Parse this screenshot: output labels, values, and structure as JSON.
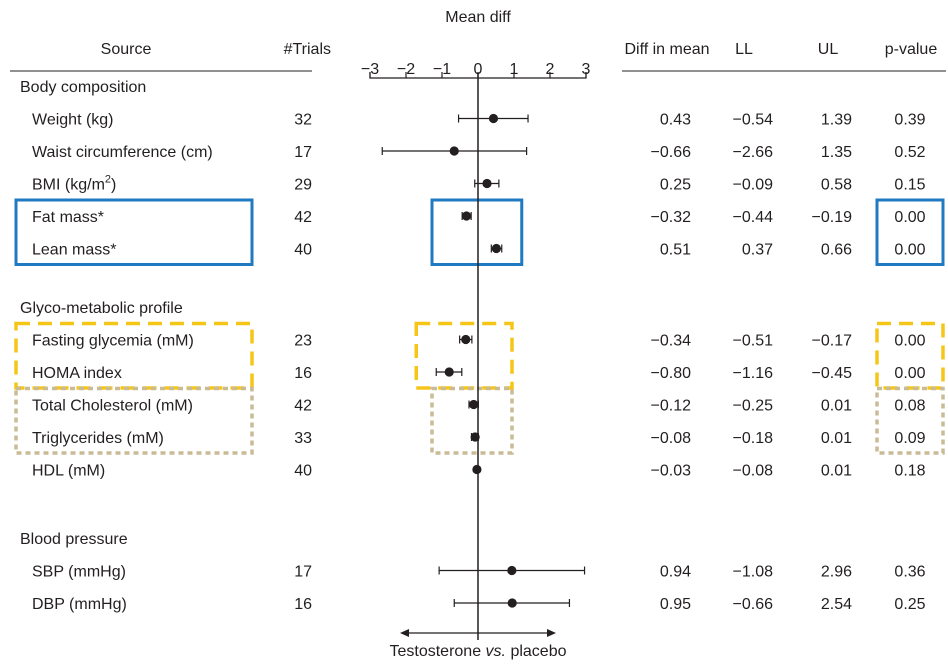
{
  "chart_data": {
    "type": "forest",
    "title": "Mean diff",
    "xlabel": "Testosterone vs. placebo",
    "xlabel_parts": [
      "Testosterone ",
      "vs.",
      " placebo"
    ],
    "xlim": [
      -3,
      3
    ],
    "x_ticks": [
      "−3",
      "−2",
      "−1",
      "0",
      "1",
      "2",
      "3"
    ],
    "reference_line": 0,
    "columns": {
      "source": "Source",
      "trials": "#Trials",
      "diff": "Diff in mean",
      "ll": "LL",
      "ul": "UL",
      "p": "p-value"
    },
    "groups": [
      {
        "name": "Body composition",
        "rows": [
          {
            "label": "Weight (kg)",
            "trials": "32",
            "diff": 0.43,
            "ll": -0.54,
            "ul": 1.39,
            "diff_text": "0.43",
            "ll_text": "−0.54",
            "ul_text": "1.39",
            "p_text": "0.39"
          },
          {
            "label": "Waist circumference (cm)",
            "trials": "17",
            "diff": -0.66,
            "ll": -2.66,
            "ul": 1.35,
            "diff_text": "−0.66",
            "ll_text": "−2.66",
            "ul_text": "1.35",
            "p_text": "0.52"
          },
          {
            "label": "BMI (kg/m",
            "label_sup": "2",
            "label_tail": ")",
            "trials": "29",
            "diff": 0.25,
            "ll": -0.09,
            "ul": 0.58,
            "diff_text": "0.25",
            "ll_text": "−0.09",
            "ul_text": "0.58",
            "p_text": "0.15"
          },
          {
            "label": "Fat mass*",
            "trials": "42",
            "diff": -0.32,
            "ll": -0.44,
            "ul": -0.19,
            "diff_text": "−0.32",
            "ll_text": "−0.44",
            "ul_text": "−0.19",
            "p_text": "0.00"
          },
          {
            "label": "Lean mass*",
            "trials": "40",
            "diff": 0.51,
            "ll": 0.37,
            "ul": 0.66,
            "diff_text": "0.51",
            "ll_text": "0.37",
            "ul_text": "0.66",
            "p_text": "0.00"
          }
        ]
      },
      {
        "name": "Glyco-metabolic profile",
        "rows": [
          {
            "label": "Fasting glycemia (mM)",
            "trials": "23",
            "diff": -0.34,
            "ll": -0.51,
            "ul": -0.17,
            "diff_text": "−0.34",
            "ll_text": "−0.51",
            "ul_text": "−0.17",
            "p_text": "0.00"
          },
          {
            "label": "HOMA index",
            "trials": "16",
            "diff": -0.8,
            "ll": -1.16,
            "ul": -0.45,
            "diff_text": "−0.80",
            "ll_text": "−1.16",
            "ul_text": "−0.45",
            "p_text": "0.00"
          },
          {
            "label": "Total Cholesterol (mM)",
            "trials": "42",
            "diff": -0.12,
            "ll": -0.25,
            "ul": 0.01,
            "diff_text": "−0.12",
            "ll_text": "−0.25",
            "ul_text": "0.01",
            "p_text": "0.08"
          },
          {
            "label": "Triglycerides (mM)",
            "trials": "33",
            "diff": -0.08,
            "ll": -0.18,
            "ul": 0.01,
            "diff_text": "−0.08",
            "ll_text": "−0.18",
            "ul_text": "0.01",
            "p_text": "0.09"
          },
          {
            "label": "HDL (mM)",
            "trials": "40",
            "diff": -0.03,
            "ll": -0.08,
            "ul": 0.01,
            "diff_text": "−0.03",
            "ll_text": "−0.08",
            "ul_text": "0.01",
            "p_text": "0.18"
          }
        ]
      },
      {
        "name": "Blood pressure",
        "rows": [
          {
            "label": "SBP (mmHg)",
            "trials": "17",
            "diff": 0.94,
            "ll": -1.08,
            "ul": 2.96,
            "diff_text": "0.94",
            "ll_text": "−1.08",
            "ul_text": "2.96",
            "p_text": "0.36"
          },
          {
            "label": "DBP (mmHg)",
            "trials": "16",
            "diff": 0.95,
            "ll": -0.66,
            "ul": 2.54,
            "diff_text": "0.95",
            "ll_text": "−0.66",
            "ul_text": "2.54",
            "p_text": "0.25"
          }
        ]
      }
    ],
    "highlights": [
      {
        "rows": [
          "Fat mass*",
          "Lean mass*"
        ],
        "style": "solid",
        "color": "#1f7ac2"
      },
      {
        "rows": [
          "Fasting glycemia (mM)",
          "HOMA index"
        ],
        "style": "dashed",
        "color": "#f5c518"
      },
      {
        "rows": [
          "Total Cholesterol (mM)",
          "Triglycerides (mM)"
        ],
        "style": "dotted",
        "color": "#c9bb95"
      }
    ],
    "colors": {
      "text": "#231f20",
      "marker": "#231f20",
      "blue": "#1f7ac2",
      "yellow": "#f5c518",
      "tan": "#c9bb95"
    }
  }
}
